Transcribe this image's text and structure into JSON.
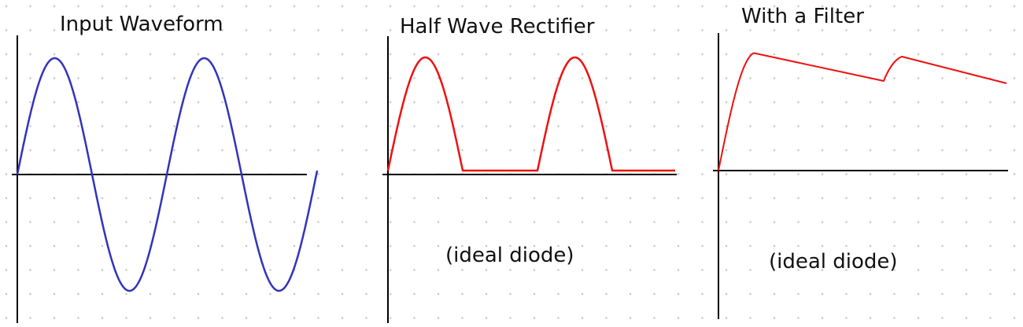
{
  "panels": [
    {
      "title": "Input Waveform",
      "note": ""
    },
    {
      "title": "Half Wave Rectifier",
      "note": "(ideal diode)"
    },
    {
      "title": "With a Filter",
      "note": "(ideal diode)"
    }
  ],
  "colors": {
    "background": "#ffffff",
    "dot_grid": "#c8c8c8",
    "axis": "#000000",
    "input_wave": "#3333bb",
    "rectified_wave": "#ee1111"
  },
  "waveforms": {
    "input": {
      "type": "sine",
      "cycles": 2
    },
    "half_wave": {
      "type": "half-wave-rectified",
      "cycles": 2
    },
    "filtered": {
      "type": "rectified-with-capacitor-filter",
      "peaks": 2
    }
  }
}
